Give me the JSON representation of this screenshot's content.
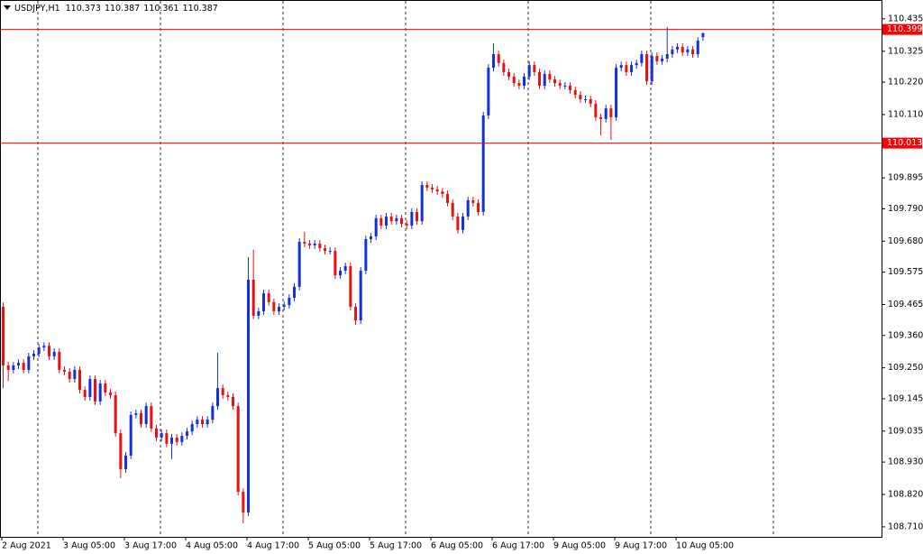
{
  "chart_data": {
    "type": "candlestick",
    "title": "USDJPY,H1",
    "up_color": "#1030e0",
    "down_color": "#e81010",
    "ylim": [
      108.676,
      110.499
    ],
    "yticks": [
      110.435,
      110.325,
      {
        "value": 110.22,
        "label": "110.220"
      },
      {
        "value": 110.11,
        "label": "110.110"
      },
      109.895,
      {
        "value": 109.79,
        "label": "109.790"
      },
      {
        "value": 109.68,
        "label": "109.680"
      },
      109.575,
      109.465,
      {
        "value": 109.36,
        "label": "109.360"
      },
      {
        "value": 109.25,
        "label": "109.250"
      },
      109.145,
      109.035,
      {
        "value": 108.93,
        "label": "108.930"
      },
      {
        "value": 108.82,
        "label": "108.820"
      },
      {
        "value": 108.71,
        "label": "108.710"
      }
    ],
    "hlines": [
      110.399,
      110.013
    ],
    "hline_color": "#ff0000",
    "categories": [
      "2 Aug 2021",
      null,
      null,
      null,
      null,
      null,
      null,
      null,
      null,
      null,
      null,
      null,
      "3 Aug 05:00",
      null,
      null,
      null,
      null,
      null,
      null,
      null,
      null,
      null,
      null,
      null,
      "3 Aug 17:00",
      null,
      null,
      null,
      null,
      null,
      null,
      null,
      null,
      null,
      null,
      null,
      "4 Aug 05:00",
      null,
      null,
      null,
      null,
      null,
      null,
      null,
      null,
      null,
      null,
      null,
      "4 Aug 17:00",
      null,
      null,
      null,
      null,
      null,
      null,
      null,
      null,
      null,
      null,
      null,
      "5 Aug 05:00",
      null,
      null,
      null,
      null,
      null,
      null,
      null,
      null,
      null,
      null,
      null,
      "5 Aug 17:00",
      null,
      null,
      null,
      null,
      null,
      null,
      null,
      null,
      null,
      null,
      null,
      "6 Aug 05:00",
      null,
      null,
      null,
      null,
      null,
      null,
      null,
      null,
      null,
      null,
      null,
      "6 Aug 17:00",
      null,
      null,
      null,
      null,
      null,
      null,
      null,
      null,
      null,
      null,
      null,
      "9 Aug 05:00",
      null,
      null,
      null,
      null,
      null,
      null,
      null,
      null,
      null,
      null,
      null,
      "9 Aug 17:00",
      null,
      null,
      null,
      null,
      null,
      null,
      null,
      null,
      null,
      null,
      null,
      "10 Aug 05:00",
      null,
      null,
      null,
      null,
      null
    ],
    "open": [
      109.457,
      109.258,
      109.243,
      109.258,
      109.267,
      109.243,
      109.289,
      109.298,
      109.319,
      109.325,
      109.289,
      109.304,
      109.243,
      109.237,
      109.212,
      109.243,
      109.175,
      109.151,
      109.212,
      109.136,
      109.197,
      109.166,
      109.157,
      109.028,
      108.906,
      108.952,
      109.09,
      109.096,
      109.059,
      109.12,
      109.044,
      109.013,
      109.028,
      108.992,
      109.013,
      108.998,
      109.019,
      109.034,
      109.059,
      109.074,
      109.059,
      109.074,
      109.12,
      109.181,
      109.157,
      109.151,
      109.12,
      108.829,
      108.759,
      109.549,
      109.427,
      109.442,
      109.503,
      109.473,
      109.442,
      109.457,
      109.463,
      109.488,
      109.525,
      109.678,
      109.672,
      109.666,
      109.672,
      109.656,
      109.647,
      109.647,
      109.564,
      109.58,
      109.595,
      109.457,
      109.411,
      109.58,
      109.687,
      109.696,
      109.758,
      109.733,
      109.764,
      109.748,
      109.758,
      109.739,
      109.733,
      109.779,
      109.748,
      109.871,
      109.862,
      109.856,
      109.849,
      109.84,
      109.81,
      109.764,
      109.718,
      109.764,
      109.819,
      109.81,
      109.779,
      110.107,
      110.269,
      110.315,
      110.285,
      110.254,
      110.239,
      110.217,
      110.208,
      110.239,
      110.278,
      110.254,
      110.208,
      110.248,
      110.229,
      110.217,
      110.208,
      110.208,
      110.193,
      110.177,
      110.162,
      110.162,
      110.147,
      110.101,
      110.095,
      110.131,
      110.101,
      110.269,
      110.278,
      110.254,
      110.278,
      110.285,
      110.315,
      110.223,
      110.309,
      110.291,
      110.3,
      110.315,
      110.331,
      110.34,
      110.321,
      110.331,
      110.315,
      110.373
    ],
    "high": [
      109.472,
      109.27,
      109.27,
      109.279,
      109.279,
      109.301,
      109.31,
      109.331,
      109.337,
      109.337,
      109.316,
      109.316,
      109.255,
      109.249,
      109.255,
      109.255,
      109.187,
      109.224,
      109.224,
      109.209,
      109.209,
      109.178,
      109.169,
      109.04,
      108.964,
      109.102,
      109.108,
      109.108,
      109.132,
      109.132,
      109.056,
      109.04,
      109.04,
      109.025,
      109.025,
      109.031,
      109.046,
      109.071,
      109.086,
      109.086,
      109.086,
      109.132,
      109.301,
      109.193,
      109.169,
      109.163,
      109.132,
      108.841,
      109.626,
      109.651,
      109.454,
      109.515,
      109.515,
      109.485,
      109.469,
      109.475,
      109.5,
      109.537,
      109.69,
      109.712,
      109.684,
      109.684,
      109.684,
      109.668,
      109.659,
      109.659,
      109.592,
      109.607,
      109.607,
      109.469,
      109.592,
      109.699,
      109.708,
      109.77,
      109.77,
      109.776,
      109.776,
      109.77,
      109.77,
      109.751,
      109.791,
      109.791,
      109.883,
      109.883,
      109.874,
      109.868,
      109.861,
      109.852,
      109.822,
      109.776,
      109.776,
      109.831,
      109.831,
      109.822,
      110.119,
      110.281,
      110.352,
      110.327,
      110.297,
      110.266,
      110.251,
      110.229,
      110.251,
      110.29,
      110.29,
      110.266,
      110.26,
      110.26,
      110.241,
      110.229,
      110.22,
      110.22,
      110.205,
      110.189,
      110.174,
      110.174,
      110.159,
      110.113,
      110.143,
      110.143,
      110.281,
      110.29,
      110.29,
      110.29,
      110.297,
      110.327,
      110.327,
      110.321,
      110.321,
      110.312,
      110.407,
      110.343,
      110.352,
      110.352,
      110.343,
      110.343,
      110.373,
      110.387
    ],
    "low": [
      109.181,
      109.205,
      109.231,
      109.246,
      109.231,
      109.231,
      109.277,
      109.286,
      109.307,
      109.277,
      109.277,
      109.231,
      109.225,
      109.2,
      109.2,
      109.163,
      109.139,
      109.139,
      109.124,
      109.124,
      109.154,
      109.145,
      109.016,
      108.875,
      108.894,
      108.94,
      109.078,
      109.047,
      109.047,
      109.032,
      109.001,
      109.001,
      108.98,
      108.94,
      108.986,
      108.986,
      109.007,
      109.022,
      109.047,
      109.047,
      109.047,
      109.062,
      109.108,
      109.145,
      109.139,
      109.108,
      108.817,
      108.722,
      108.747,
      109.415,
      109.415,
      109.43,
      109.461,
      109.43,
      109.43,
      109.445,
      109.451,
      109.476,
      109.513,
      109.66,
      109.654,
      109.654,
      109.644,
      109.635,
      109.635,
      109.552,
      109.552,
      109.568,
      109.445,
      109.396,
      109.399,
      109.568,
      109.675,
      109.684,
      109.721,
      109.721,
      109.736,
      109.736,
      109.727,
      109.721,
      109.721,
      109.736,
      109.736,
      109.85,
      109.844,
      109.837,
      109.828,
      109.798,
      109.752,
      109.706,
      109.706,
      109.752,
      109.798,
      109.767,
      109.767,
      110.095,
      110.257,
      110.273,
      110.242,
      110.227,
      110.205,
      110.196,
      110.196,
      110.227,
      110.242,
      110.196,
      110.196,
      110.217,
      110.205,
      110.196,
      110.196,
      110.181,
      110.165,
      110.15,
      110.15,
      110.135,
      110.089,
      110.039,
      110.083,
      110.024,
      110.089,
      110.257,
      110.242,
      110.242,
      110.266,
      110.273,
      110.211,
      110.211,
      110.279,
      110.279,
      110.288,
      110.303,
      110.319,
      110.309,
      110.309,
      110.303,
      110.303,
      110.361
    ],
    "close": [
      109.258,
      109.243,
      109.258,
      109.267,
      109.243,
      109.289,
      109.298,
      109.319,
      109.325,
      109.289,
      109.304,
      109.243,
      109.237,
      109.212,
      109.243,
      109.175,
      109.151,
      109.212,
      109.136,
      109.197,
      109.166,
      109.157,
      109.028,
      108.906,
      108.952,
      109.09,
      109.096,
      109.059,
      109.12,
      109.044,
      109.013,
      109.028,
      108.992,
      109.013,
      108.998,
      109.019,
      109.034,
      109.059,
      109.074,
      109.059,
      109.074,
      109.12,
      109.181,
      109.157,
      109.151,
      109.12,
      108.829,
      108.759,
      109.549,
      109.427,
      109.442,
      109.503,
      109.473,
      109.442,
      109.457,
      109.463,
      109.488,
      109.525,
      109.678,
      109.672,
      109.666,
      109.672,
      109.656,
      109.647,
      109.647,
      109.564,
      109.58,
      109.595,
      109.457,
      109.411,
      109.58,
      109.687,
      109.696,
      109.758,
      109.733,
      109.764,
      109.748,
      109.758,
      109.739,
      109.733,
      109.779,
      109.748,
      109.871,
      109.862,
      109.856,
      109.849,
      109.84,
      109.81,
      109.764,
      109.718,
      109.764,
      109.819,
      109.81,
      109.779,
      110.107,
      110.269,
      110.315,
      110.285,
      110.254,
      110.239,
      110.217,
      110.208,
      110.239,
      110.278,
      110.254,
      110.208,
      110.248,
      110.229,
      110.217,
      110.208,
      110.208,
      110.193,
      110.177,
      110.162,
      110.162,
      110.147,
      110.101,
      110.095,
      110.131,
      110.101,
      110.269,
      110.278,
      110.254,
      110.278,
      110.285,
      110.315,
      110.223,
      110.309,
      110.291,
      110.3,
      110.315,
      110.331,
      110.34,
      110.321,
      110.331,
      110.315,
      110.361,
      110.387
    ]
  }
}
